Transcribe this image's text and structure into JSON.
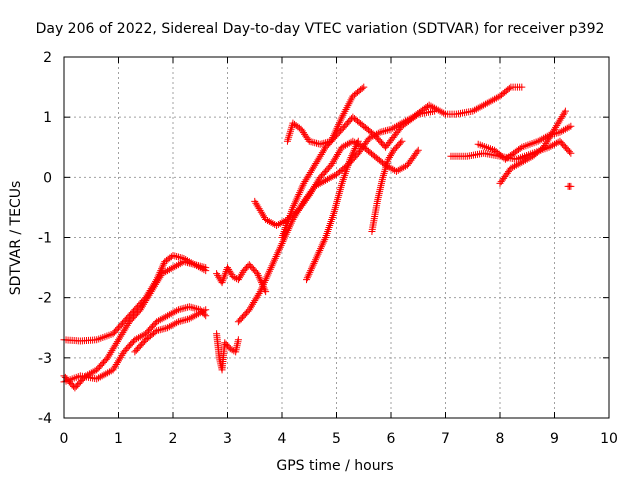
{
  "chart_data": {
    "type": "scatter",
    "title": "Day 206 of 2022, Sidereal Day-to-day VTEC variation (SDTVAR) for receiver p392",
    "xlabel": "GPS time / hours",
    "ylabel": "SDTVAR / TECUs",
    "xlim": [
      0,
      10
    ],
    "ylim": [
      -4,
      2
    ],
    "x_ticks": [
      0,
      1,
      2,
      3,
      4,
      5,
      6,
      7,
      8,
      9,
      10
    ],
    "y_ticks": [
      -4,
      -3,
      -2,
      -1,
      0,
      1,
      2
    ],
    "x_tick_labels": [
      "0",
      "1",
      "2",
      "3",
      "4",
      "5",
      "6",
      "7",
      "8",
      "9",
      "10"
    ],
    "y_tick_labels": [
      "-4",
      "-3",
      "-2",
      "-1",
      "0",
      "1",
      "2"
    ],
    "grid": true,
    "legend": "none",
    "marker": "plus",
    "color": "#ff0000",
    "series": [
      {
        "values": [
          [
            0.0,
            -2.7
          ],
          [
            0.3,
            -2.72
          ],
          [
            0.6,
            -2.7
          ],
          [
            0.9,
            -2.6
          ],
          [
            1.1,
            -2.4
          ],
          [
            1.3,
            -2.2
          ],
          [
            1.5,
            -2.0
          ],
          [
            1.7,
            -1.7
          ],
          [
            1.85,
            -1.4
          ],
          [
            2.0,
            -1.3
          ],
          [
            2.2,
            -1.35
          ],
          [
            2.4,
            -1.45
          ],
          [
            2.6,
            -1.5
          ]
        ]
      },
      {
        "values": [
          [
            0.0,
            -3.3
          ],
          [
            0.2,
            -3.5
          ],
          [
            0.4,
            -3.3
          ],
          [
            0.6,
            -3.2
          ],
          [
            0.8,
            -3.0
          ],
          [
            1.0,
            -2.7
          ],
          [
            1.2,
            -2.4
          ],
          [
            1.4,
            -2.2
          ],
          [
            1.6,
            -1.9
          ],
          [
            1.8,
            -1.6
          ],
          [
            2.0,
            -1.5
          ],
          [
            2.2,
            -1.4
          ],
          [
            2.4,
            -1.45
          ],
          [
            2.6,
            -1.55
          ]
        ]
      },
      {
        "values": [
          [
            0.0,
            -3.4
          ],
          [
            0.3,
            -3.3
          ],
          [
            0.6,
            -3.35
          ],
          [
            0.9,
            -3.2
          ],
          [
            1.1,
            -2.9
          ],
          [
            1.3,
            -2.7
          ],
          [
            1.5,
            -2.6
          ],
          [
            1.7,
            -2.4
          ],
          [
            1.9,
            -2.3
          ],
          [
            2.1,
            -2.2
          ],
          [
            2.3,
            -2.15
          ],
          [
            2.5,
            -2.2
          ],
          [
            2.6,
            -2.3
          ]
        ]
      },
      {
        "values": [
          [
            1.3,
            -2.9
          ],
          [
            1.5,
            -2.7
          ],
          [
            1.7,
            -2.55
          ],
          [
            1.9,
            -2.5
          ],
          [
            2.1,
            -2.4
          ],
          [
            2.3,
            -2.35
          ],
          [
            2.5,
            -2.25
          ],
          [
            2.6,
            -2.2
          ]
        ]
      },
      {
        "values": [
          [
            2.8,
            -2.6
          ],
          [
            2.85,
            -3.0
          ],
          [
            2.9,
            -3.2
          ],
          [
            2.95,
            -2.75
          ],
          [
            3.05,
            -2.85
          ],
          [
            3.15,
            -2.9
          ],
          [
            3.2,
            -2.7
          ]
        ]
      },
      {
        "values": [
          [
            2.8,
            -1.6
          ],
          [
            2.9,
            -1.75
          ],
          [
            3.0,
            -1.5
          ],
          [
            3.1,
            -1.65
          ],
          [
            3.2,
            -1.7
          ],
          [
            3.3,
            -1.55
          ],
          [
            3.4,
            -1.45
          ],
          [
            3.55,
            -1.6
          ],
          [
            3.7,
            -1.9
          ]
        ]
      },
      {
        "values": [
          [
            3.2,
            -2.4
          ],
          [
            3.4,
            -2.2
          ],
          [
            3.6,
            -1.9
          ],
          [
            3.8,
            -1.5
          ],
          [
            4.0,
            -1.1
          ],
          [
            4.2,
            -0.7
          ],
          [
            4.4,
            -0.4
          ],
          [
            4.6,
            -0.15
          ],
          [
            4.8,
            -0.05
          ],
          [
            5.0,
            0.05
          ],
          [
            5.2,
            0.2
          ],
          [
            5.4,
            0.4
          ],
          [
            5.6,
            0.65
          ],
          [
            5.8,
            0.75
          ],
          [
            6.0,
            0.8
          ],
          [
            6.2,
            0.9
          ],
          [
            6.4,
            1.0
          ],
          [
            6.7,
            1.2
          ],
          [
            7.0,
            1.05
          ],
          [
            7.2,
            1.05
          ],
          [
            7.5,
            1.1
          ],
          [
            7.8,
            1.25
          ],
          [
            8.0,
            1.35
          ],
          [
            8.2,
            1.5
          ],
          [
            8.4,
            1.5
          ]
        ]
      },
      {
        "values": [
          [
            3.5,
            -0.4
          ],
          [
            3.7,
            -0.7
          ],
          [
            3.9,
            -0.8
          ],
          [
            4.1,
            -0.7
          ],
          [
            4.3,
            -0.55
          ],
          [
            4.5,
            -0.3
          ],
          [
            4.7,
            0.0
          ],
          [
            4.9,
            0.2
          ],
          [
            5.1,
            0.5
          ],
          [
            5.3,
            0.6
          ],
          [
            5.5,
            0.5
          ],
          [
            5.7,
            0.35
          ],
          [
            5.9,
            0.2
          ],
          [
            6.1,
            0.1
          ],
          [
            6.3,
            0.2
          ],
          [
            6.5,
            0.45
          ]
        ]
      },
      {
        "values": [
          [
            4.1,
            0.6
          ],
          [
            4.2,
            0.9
          ],
          [
            4.35,
            0.8
          ],
          [
            4.5,
            0.6
          ],
          [
            4.7,
            0.55
          ],
          [
            4.9,
            0.6
          ],
          [
            5.1,
            1.0
          ],
          [
            5.3,
            1.35
          ],
          [
            5.5,
            1.5
          ]
        ]
      },
      {
        "values": [
          [
            4.0,
            -1.0
          ],
          [
            4.2,
            -0.5
          ],
          [
            4.4,
            -0.1
          ],
          [
            4.6,
            0.2
          ],
          [
            4.8,
            0.5
          ],
          [
            5.0,
            0.7
          ],
          [
            5.2,
            0.9
          ],
          [
            5.3,
            1.0
          ],
          [
            5.5,
            0.85
          ],
          [
            5.7,
            0.7
          ],
          [
            5.9,
            0.5
          ],
          [
            6.2,
            0.85
          ],
          [
            6.5,
            1.05
          ],
          [
            6.8,
            1.1
          ]
        ]
      },
      {
        "values": [
          [
            4.45,
            -1.7
          ],
          [
            4.6,
            -1.4
          ],
          [
            4.8,
            -1.0
          ],
          [
            4.95,
            -0.6
          ],
          [
            5.1,
            -0.1
          ],
          [
            5.25,
            0.3
          ],
          [
            5.4,
            0.6
          ]
        ]
      },
      {
        "values": [
          [
            5.65,
            -0.9
          ],
          [
            5.75,
            -0.4
          ],
          [
            5.85,
            0.0
          ],
          [
            5.95,
            0.3
          ],
          [
            6.05,
            0.45
          ],
          [
            6.2,
            0.6
          ]
        ]
      },
      {
        "values": [
          [
            7.1,
            0.35
          ],
          [
            7.4,
            0.35
          ],
          [
            7.7,
            0.4
          ],
          [
            8.0,
            0.35
          ],
          [
            8.3,
            0.3
          ],
          [
            8.6,
            0.4
          ],
          [
            8.9,
            0.5
          ],
          [
            9.1,
            0.6
          ],
          [
            9.3,
            0.4
          ]
        ]
      },
      {
        "values": [
          [
            7.6,
            0.55
          ],
          [
            7.9,
            0.45
          ],
          [
            8.1,
            0.3
          ],
          [
            8.4,
            0.5
          ],
          [
            8.7,
            0.6
          ],
          [
            8.9,
            0.7
          ],
          [
            9.1,
            0.75
          ],
          [
            9.3,
            0.85
          ]
        ]
      },
      {
        "values": [
          [
            8.0,
            -0.1
          ],
          [
            8.2,
            0.15
          ],
          [
            8.4,
            0.25
          ],
          [
            8.6,
            0.35
          ],
          [
            8.8,
            0.5
          ],
          [
            9.0,
            0.8
          ],
          [
            9.2,
            1.1
          ]
        ]
      },
      {
        "values": [
          [
            9.25,
            -0.15
          ],
          [
            9.3,
            -0.15
          ]
        ]
      }
    ]
  }
}
